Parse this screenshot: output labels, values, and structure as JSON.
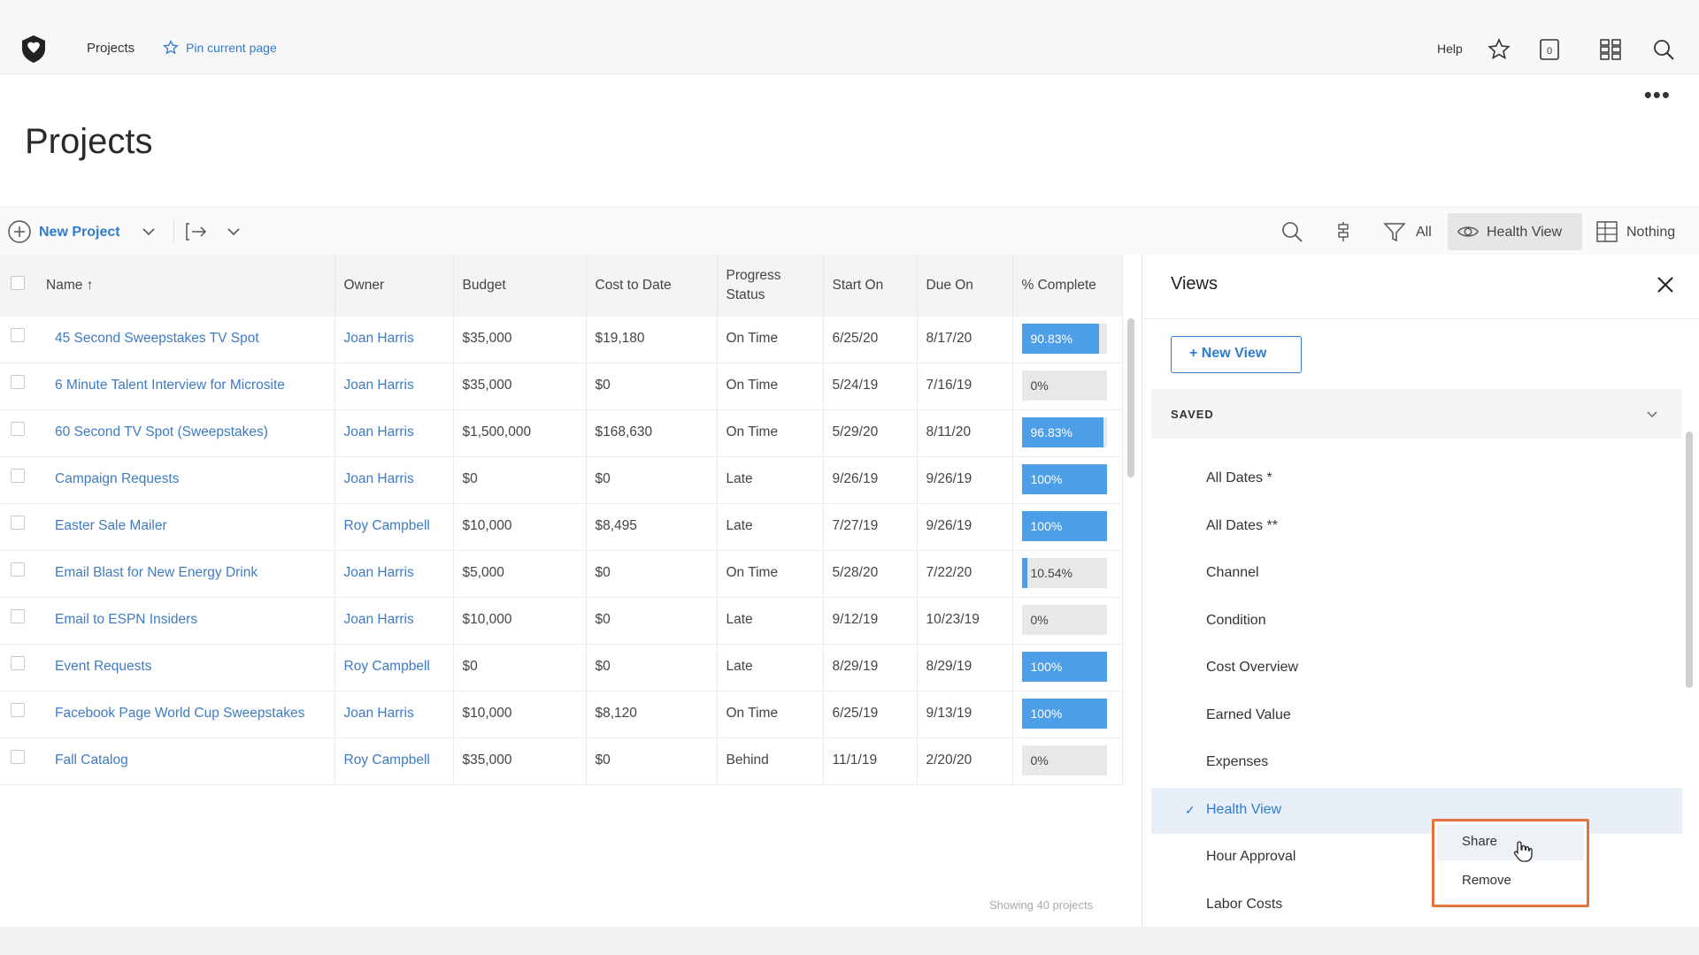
{
  "topbar": {
    "breadcrumb": "Projects",
    "pin_label": "Pin current page",
    "help_label": "Help"
  },
  "page": {
    "title": "Projects"
  },
  "toolbar": {
    "new_project_label": "New Project",
    "filter_label": "All",
    "view_label": "Health View",
    "group_label": "Nothing"
  },
  "table": {
    "columns": [
      "Name ↑",
      "Owner",
      "Budget",
      "Cost to Date",
      "Progress Status",
      "Start On",
      "Due On",
      "% Complete"
    ],
    "rows": [
      {
        "name": "45 Second Sweepstakes TV Spot",
        "owner": "Joan Harris",
        "budget": "$35,000",
        "cost": "$19,180",
        "status": "On Time",
        "start": "6/25/20",
        "due": "8/17/20",
        "pct_label": "90.83%",
        "pct": 0.9083
      },
      {
        "name": "6 Minute Talent Interview for Microsite",
        "owner": "Joan Harris",
        "budget": "$35,000",
        "cost": "$0",
        "status": "On Time",
        "start": "5/24/19",
        "due": "7/16/19",
        "pct_label": "0%",
        "pct": 0
      },
      {
        "name": "60 Second TV Spot (Sweepstakes)",
        "owner": "Joan Harris",
        "budget": "$1,500,000",
        "cost": "$168,630",
        "status": "On Time",
        "start": "5/29/20",
        "due": "8/11/20",
        "pct_label": "96.83%",
        "pct": 0.9683
      },
      {
        "name": "Campaign Requests",
        "owner": "Joan Harris",
        "budget": "$0",
        "cost": "$0",
        "status": "Late",
        "start": "9/26/19",
        "due": "9/26/19",
        "pct_label": "100%",
        "pct": 1
      },
      {
        "name": "Easter Sale Mailer",
        "owner": "Roy Campbell",
        "budget": "$10,000",
        "cost": "$8,495",
        "status": "Late",
        "start": "7/27/19",
        "due": "9/26/19",
        "pct_label": "100%",
        "pct": 1
      },
      {
        "name": "Email Blast for New Energy Drink",
        "owner": "Joan Harris",
        "budget": "$5,000",
        "cost": "$0",
        "status": "On Time",
        "start": "5/28/20",
        "due": "7/22/20",
        "pct_label": "10.54%",
        "pct": 0.1054
      },
      {
        "name": "Email to ESPN Insiders",
        "owner": "Joan Harris",
        "budget": "$10,000",
        "cost": "$0",
        "status": "Late",
        "start": "9/12/19",
        "due": "10/23/19",
        "pct_label": "0%",
        "pct": 0
      },
      {
        "name": "Event Requests",
        "owner": "Roy Campbell",
        "budget": "$0",
        "cost": "$0",
        "status": "Late",
        "start": "8/29/19",
        "due": "8/29/19",
        "pct_label": "100%",
        "pct": 1
      },
      {
        "name": "Facebook Page World Cup Sweepstakes",
        "owner": "Joan Harris",
        "budget": "$10,000",
        "cost": "$8,120",
        "status": "On Time",
        "start": "6/25/19",
        "due": "9/13/19",
        "pct_label": "100%",
        "pct": 1
      },
      {
        "name": "Fall Catalog",
        "owner": "Roy Campbell",
        "budget": "$35,000",
        "cost": "$0",
        "status": "Behind",
        "start": "11/1/19",
        "due": "2/20/20",
        "pct_label": "0%",
        "pct": 0
      }
    ],
    "footer": "Showing 40 projects"
  },
  "views": {
    "title": "Views",
    "new_view_label": "+ New View",
    "saved_label": "SAVED",
    "items": [
      "All Dates *",
      "All Dates **",
      "Channel",
      "Condition",
      "Cost Overview",
      "Earned Value",
      "Expenses",
      "Health View",
      "Hour Approval",
      "Labor Costs"
    ],
    "active_index": 7,
    "check_mark": "✓"
  },
  "context_menu": {
    "items": [
      "Share",
      "Remove"
    ]
  },
  "colors": {
    "accent": "#2f7bd0",
    "progress_fill": "#4d9ee8",
    "highlight_border": "#e2733a"
  }
}
